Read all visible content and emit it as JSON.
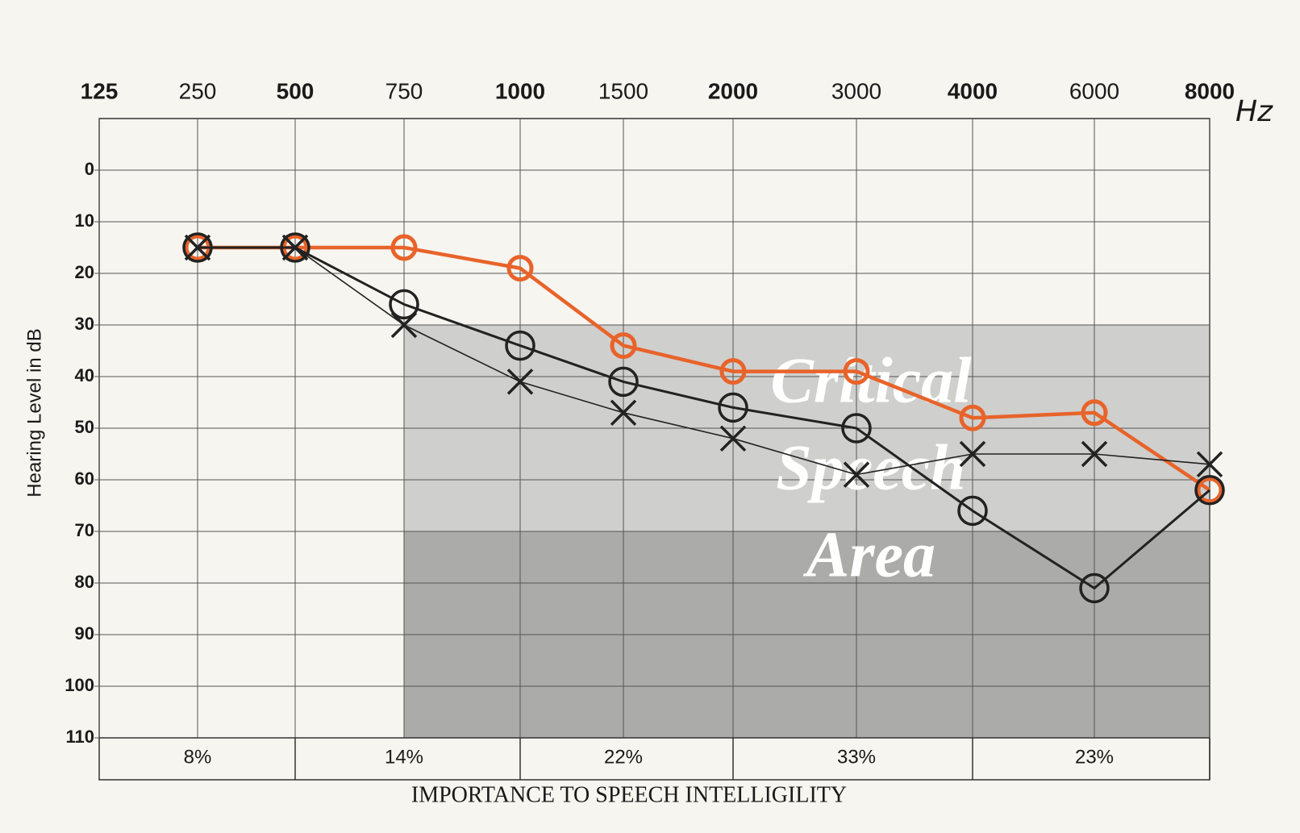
{
  "chart_data": {
    "type": "line",
    "x_unit": "Hz",
    "y_label": "Hearing Level in dB",
    "categories": [
      "125",
      "250",
      "500",
      "750",
      "1000",
      "1500",
      "2000",
      "3000",
      "4000",
      "6000",
      "8000"
    ],
    "ylim": [
      -10,
      110
    ],
    "yticks": [
      0,
      10,
      20,
      30,
      40,
      50,
      60,
      70,
      80,
      90,
      100,
      110
    ],
    "grid": true,
    "series": [
      {
        "color": "#e8632a",
        "marker": "o",
        "values": [
          null,
          15,
          15,
          15,
          19,
          34,
          39,
          39,
          48,
          47,
          62
        ]
      },
      {
        "color": "#222222",
        "marker": "o",
        "values": [
          null,
          15,
          15,
          26,
          34,
          41,
          46,
          50,
          66,
          81,
          62
        ]
      },
      {
        "color": "#222222",
        "marker": "x",
        "values": [
          null,
          15,
          15,
          30,
          41,
          47,
          52,
          59,
          55,
          55,
          57
        ]
      }
    ],
    "critical_area": {
      "label": [
        "Critical",
        "Speech",
        "Area"
      ],
      "levels": [
        30,
        70
      ]
    },
    "importance": {
      "title": "IMPORTANCE TO SPEECH INTELLIGILITY",
      "values": [
        8,
        14,
        22,
        33,
        23
      ],
      "value_labels": [
        "8%",
        "14%",
        "22%",
        "33%",
        "23%"
      ]
    }
  }
}
